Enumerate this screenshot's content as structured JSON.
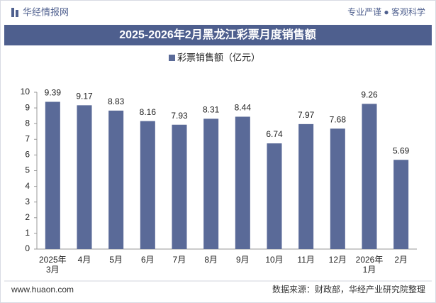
{
  "header": {
    "brand": "华经情报网",
    "slogan": "专业严谨 ● 客观科学"
  },
  "chart_data": {
    "type": "bar",
    "title": "2025-2026年2月黑龙江彩票月度销售额",
    "categories": [
      "2025年\n3月",
      "4月",
      "5月",
      "6月",
      "7月",
      "8月",
      "9月",
      "10月",
      "11月",
      "12月",
      "2026年\n1月",
      "2月"
    ],
    "series": [
      {
        "name": "彩票销售额（亿元）",
        "color": "#5a6a98",
        "values": [
          9.39,
          9.17,
          8.83,
          8.16,
          7.93,
          8.31,
          8.44,
          6.74,
          7.97,
          7.68,
          9.26,
          5.69
        ]
      }
    ],
    "ylim": [
      0,
      10
    ],
    "yticks": [
      0,
      1,
      2,
      3,
      4,
      5,
      6,
      7,
      8,
      9,
      10
    ],
    "grid": false,
    "legend": "top"
  },
  "footer": {
    "website": "www.huaon.com",
    "source": "数据来源：财政部，华经产业研究院整理"
  }
}
